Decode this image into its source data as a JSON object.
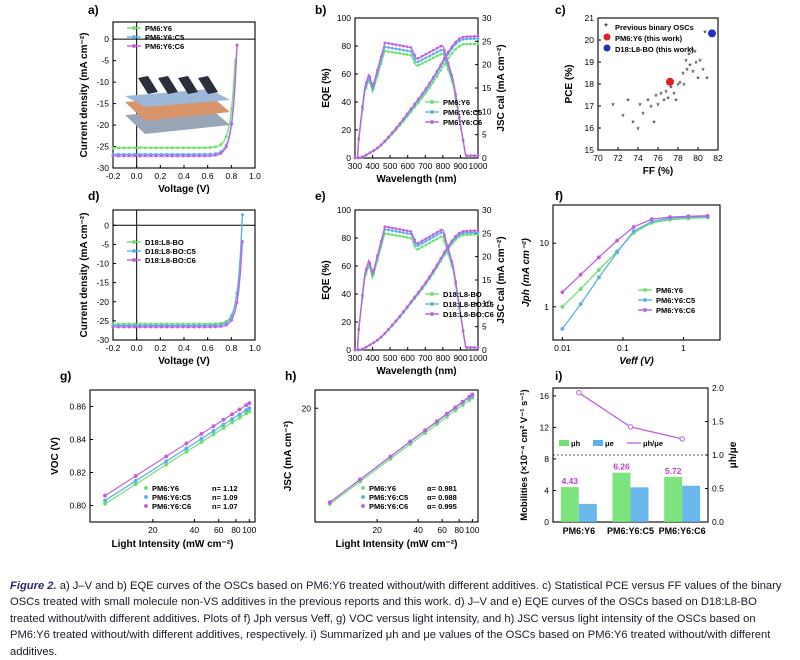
{
  "colors": {
    "y6": "#6fe06f",
    "c5": "#5ab0ea",
    "c6": "#c060e0",
    "black": "#222222",
    "red": "#e02020",
    "blue": "#2030c0"
  },
  "caption": {
    "label": "Figure 2.",
    "text": " a) J–V and b) EQE curves of the OSCs based on PM6:Y6 treated without/with different additives. c) Statistical PCE versus FF values of the binary OSCs treated with small molecule non-VS additives in the previous reports and this work. d) J–V and e) EQE curves of the OSCs based on D18:L8-BO treated without/with different additives. Plots of f) Jph versus Veff, g) VOC versus light intensity, and h) JSC versus light intensity of the OSCs based on PM6:Y6 treated without/with different additives, respectively. i) Summarized μh and μe values of the OSCs based on PM6:Y6 treated without/with different additives."
  },
  "chart_data": [
    {
      "id": "a",
      "type": "line",
      "panel_label": "a)",
      "xlabel": "Voltage (V)",
      "ylabel": "Current density (mA cm⁻²)",
      "xlim": [
        -0.2,
        1.0
      ],
      "ylim": [
        -30,
        4
      ],
      "xticks": [
        "-0.2",
        "0.0",
        "0.2",
        "0.4",
        "0.6",
        "0.8",
        "1.0"
      ],
      "yticks": [
        "0",
        "-5",
        "-10",
        "-15",
        "-20",
        "-25",
        "-30"
      ],
      "legend": [
        "PM6:Y6",
        "PM6:Y6:C5",
        "PM6:Y6:C6"
      ],
      "series": [
        {
          "name": "PM6:Y6",
          "jsc": -25.3,
          "voc": 0.84
        },
        {
          "name": "PM6:Y6:C5",
          "jsc": -26.8,
          "voc": 0.85
        },
        {
          "name": "PM6:Y6:C6",
          "jsc": -27.2,
          "voc": 0.85
        }
      ]
    },
    {
      "id": "b",
      "type": "line",
      "panel_label": "b)",
      "xlabel": "Wavelength (nm)",
      "ylabel": "EQE (%)",
      "y2label": "JSC cal (mA cm⁻²)",
      "xlim": [
        300,
        1000
      ],
      "ylim": [
        0,
        100
      ],
      "y2lim": [
        0,
        30
      ],
      "xticks": [
        "300",
        "400",
        "500",
        "600",
        "700",
        "800",
        "900",
        "1000"
      ],
      "yticks": [
        "0",
        "20",
        "40",
        "60",
        "80",
        "100"
      ],
      "y2ticks": [
        "0",
        "5",
        "10",
        "15",
        "20",
        "25",
        "30"
      ],
      "legend": [
        "PM6:Y6",
        "PM6:Y6:C5",
        "PM6:Y6:C6"
      ],
      "series": [
        {
          "name": "PM6:Y6",
          "eqe_peak": 78,
          "jsc_end": 24.5
        },
        {
          "name": "PM6:Y6:C5",
          "eqe_peak": 81,
          "jsc_end": 25.6
        },
        {
          "name": "PM6:Y6:C6",
          "eqe_peak": 84,
          "jsc_end": 26.1
        }
      ]
    },
    {
      "id": "c",
      "type": "scatter",
      "panel_label": "c)",
      "xlabel": "FF (%)",
      "ylabel": "PCE (%)",
      "xlim": [
        70,
        82
      ],
      "ylim": [
        15,
        21
      ],
      "xticks": [
        "70",
        "72",
        "74",
        "76",
        "78",
        "80",
        "82"
      ],
      "yticks": [
        "15",
        "16",
        "17",
        "18",
        "19",
        "20",
        "21"
      ],
      "legend": [
        "Previous binary OSCs",
        "PM6:Y6 (this work)",
        "D18:L8-BO (this work)"
      ],
      "previous": [
        [
          71.5,
          17.0
        ],
        [
          72.5,
          16.5
        ],
        [
          73.0,
          17.2
        ],
        [
          73.5,
          16.2
        ],
        [
          74.0,
          15.9
        ],
        [
          74.2,
          17.0
        ],
        [
          74.5,
          16.6
        ],
        [
          75.0,
          17.2
        ],
        [
          75.3,
          16.9
        ],
        [
          75.6,
          16.2
        ],
        [
          75.8,
          17.4
        ],
        [
          76.0,
          17.0
        ],
        [
          76.3,
          17.5
        ],
        [
          76.6,
          17.2
        ],
        [
          76.8,
          17.6
        ],
        [
          77.0,
          17.3
        ],
        [
          77.3,
          17.8
        ],
        [
          77.6,
          17.5
        ],
        [
          77.8,
          17.2
        ],
        [
          78.0,
          17.9
        ],
        [
          78.2,
          18.0
        ],
        [
          78.5,
          18.4
        ],
        [
          78.6,
          17.9
        ],
        [
          78.8,
          19.0
        ],
        [
          78.9,
          18.6
        ],
        [
          79.1,
          19.3
        ],
        [
          79.2,
          18.8
        ],
        [
          79.4,
          19.5
        ],
        [
          79.5,
          18.5
        ],
        [
          79.7,
          19.4
        ],
        [
          79.8,
          18.9
        ],
        [
          80.0,
          18.2
        ],
        [
          80.2,
          19.0
        ],
        [
          80.5,
          18.6
        ],
        [
          80.7,
          20.3
        ],
        [
          80.9,
          18.2
        ]
      ],
      "pm6y6": [
        77.2,
        18.1
      ],
      "d18l8bo": [
        81.4,
        20.3
      ]
    },
    {
      "id": "d",
      "type": "line",
      "panel_label": "d)",
      "xlabel": "Voltage (V)",
      "ylabel": "Current density (mA cm⁻²)",
      "xlim": [
        -0.2,
        1.0
      ],
      "ylim": [
        -30,
        4
      ],
      "xticks": [
        "-0.2",
        "0.0",
        "0.2",
        "0.4",
        "0.6",
        "0.8",
        "1.0"
      ],
      "yticks": [
        "0",
        "-5",
        "-10",
        "-15",
        "-20",
        "-25",
        "-30"
      ],
      "legend": [
        "D18:L8-BO",
        "D18:L8-BO:C5",
        "D18:L8-BO:C6"
      ],
      "series": [
        {
          "name": "D18:L8-BO",
          "jsc": -25.8,
          "voc": 0.89
        },
        {
          "name": "D18:L8-BO:C5",
          "jsc": -26.2,
          "voc": 0.89
        },
        {
          "name": "D18:L8-BO:C6",
          "jsc": -26.6,
          "voc": 0.9
        }
      ]
    },
    {
      "id": "e",
      "type": "line",
      "panel_label": "e)",
      "xlabel": "Wavelength (nm)",
      "ylabel": "EQE (%)",
      "y2label": "JSC cal (mA cm⁻²)",
      "xlim": [
        300,
        1000
      ],
      "ylim": [
        0,
        100
      ],
      "y2lim": [
        0,
        30
      ],
      "xticks": [
        "300",
        "400",
        "500",
        "600",
        "700",
        "800",
        "900",
        "1000"
      ],
      "yticks": [
        "0",
        "20",
        "40",
        "60",
        "80",
        "100"
      ],
      "y2ticks": [
        "0",
        "5",
        "10",
        "15",
        "20",
        "25",
        "30"
      ],
      "legend": [
        "D18:L8-BO",
        "D18:L8-BO:C5",
        "D18:L8-BO:C6"
      ],
      "series": [
        {
          "name": "D18:L8-BO",
          "eqe_peak": 85,
          "jsc_end": 24.8
        },
        {
          "name": "D18:L8-BO:C5",
          "eqe_peak": 88,
          "jsc_end": 25.2
        },
        {
          "name": "D18:L8-BO:C6",
          "eqe_peak": 90,
          "jsc_end": 25.6
        }
      ]
    },
    {
      "id": "f",
      "type": "line",
      "panel_label": "f)",
      "xlabel": "Veff (V)",
      "ylabel": "Jph (mA cm⁻²)",
      "xscale": "log",
      "yscale": "log",
      "xlim": [
        0.007,
        4
      ],
      "ylim": [
        0.3,
        40
      ],
      "xticks": [
        "0.01",
        "0.1",
        "1"
      ],
      "yticks": [
        "1",
        "10"
      ],
      "legend": [
        "PM6:Y6",
        "PM6:Y6:C5",
        "PM6:Y6:C6"
      ],
      "series": [
        {
          "name": "PM6:Y6",
          "x": [
            0.01,
            0.02,
            0.04,
            0.08,
            0.15,
            0.3,
            0.6,
            1.2,
            2.5
          ],
          "y": [
            1.0,
            1.9,
            3.8,
            7.5,
            14.5,
            21,
            23.5,
            24.6,
            25.3
          ]
        },
        {
          "name": "PM6:Y6:C5",
          "x": [
            0.01,
            0.02,
            0.04,
            0.08,
            0.15,
            0.3,
            0.6,
            1.2,
            2.5
          ],
          "y": [
            0.45,
            1.1,
            2.9,
            7.2,
            15.5,
            22,
            24.8,
            25.8,
            26.3
          ]
        },
        {
          "name": "PM6:Y6:C6",
          "x": [
            0.01,
            0.02,
            0.04,
            0.08,
            0.15,
            0.3,
            0.6,
            1.2,
            2.5
          ],
          "y": [
            1.7,
            3.2,
            6.0,
            11,
            18,
            24,
            25.8,
            26.6,
            27.0
          ]
        }
      ]
    },
    {
      "id": "g",
      "type": "scatter",
      "panel_label": "g)",
      "xlabel": "Light Intensity (mW cm⁻²)",
      "ylabel": "VOC (V)",
      "xscale": "log",
      "xlim": [
        7,
        110
      ],
      "ylim": [
        0.79,
        0.87
      ],
      "xticks": [
        "20",
        "40",
        "60",
        "80",
        "100"
      ],
      "yticks": [
        "0.80",
        "0.82",
        "0.84",
        "0.86"
      ],
      "legend": [
        "PM6:Y6",
        "PM6:Y6:C5",
        "PM6:Y6:C6"
      ],
      "annotations": [
        "n= 1.12",
        "n= 1.09",
        "n= 1.07"
      ],
      "series": [
        {
          "name": "PM6:Y6",
          "n": 1.12,
          "v_low": 0.801,
          "v_high": 0.857
        },
        {
          "name": "PM6:Y6:C5",
          "n": 1.09,
          "v_low": 0.803,
          "v_high": 0.859
        },
        {
          "name": "PM6:Y6:C6",
          "n": 1.07,
          "v_low": 0.806,
          "v_high": 0.862
        }
      ]
    },
    {
      "id": "h",
      "type": "scatter",
      "panel_label": "h)",
      "xlabel": "Light Intensity (mW cm⁻²)",
      "ylabel": "JSC (mA cm⁻²)",
      "xscale": "log",
      "yscale": "log",
      "xlim": [
        7,
        110
      ],
      "ylim": [
        1.6,
        30
      ],
      "xticks": [
        "20",
        "40",
        "60",
        "80",
        "100"
      ],
      "yticks": [
        "20"
      ],
      "legend": [
        "PM6:Y6",
        "PM6:Y6:C5",
        "PM6:Y6:C6"
      ],
      "annotations": [
        "α= 0.981",
        "α= 0.988",
        "α= 0.995"
      ],
      "series": [
        {
          "name": "PM6:Y6",
          "alpha": 0.981,
          "j_high": 25.3
        },
        {
          "name": "PM6:Y6:C5",
          "alpha": 0.988,
          "j_high": 26.8
        },
        {
          "name": "PM6:Y6:C6",
          "alpha": 0.995,
          "j_high": 27.2
        }
      ]
    },
    {
      "id": "i",
      "type": "bar",
      "panel_label": "i)",
      "ylabel": "Mobilities (×10⁻⁴ cm² V⁻¹ s⁻¹)",
      "y2label": "μh/μe",
      "ylim": [
        0,
        17
      ],
      "y2lim": [
        0,
        2.0
      ],
      "yticks": [
        "0",
        "4",
        "8",
        "12",
        "16"
      ],
      "y2ticks": [
        "0.0",
        "0.5",
        "1.0",
        "1.5",
        "2.0"
      ],
      "categories": [
        "PM6:Y6",
        "PM6:Y6:C5",
        "PM6:Y6:C6"
      ],
      "legend": [
        "μh",
        "μe",
        "μh/μe"
      ],
      "series": [
        {
          "name": "μh",
          "values": [
            4.43,
            6.26,
            5.72
          ]
        },
        {
          "name": "μe",
          "values": [
            2.3,
            4.4,
            4.6
          ]
        },
        {
          "name": "μh/μe",
          "values": [
            1.93,
            1.42,
            1.24
          ]
        }
      ],
      "data_labels": [
        "4.43",
        "6.26",
        "5.72"
      ]
    }
  ]
}
